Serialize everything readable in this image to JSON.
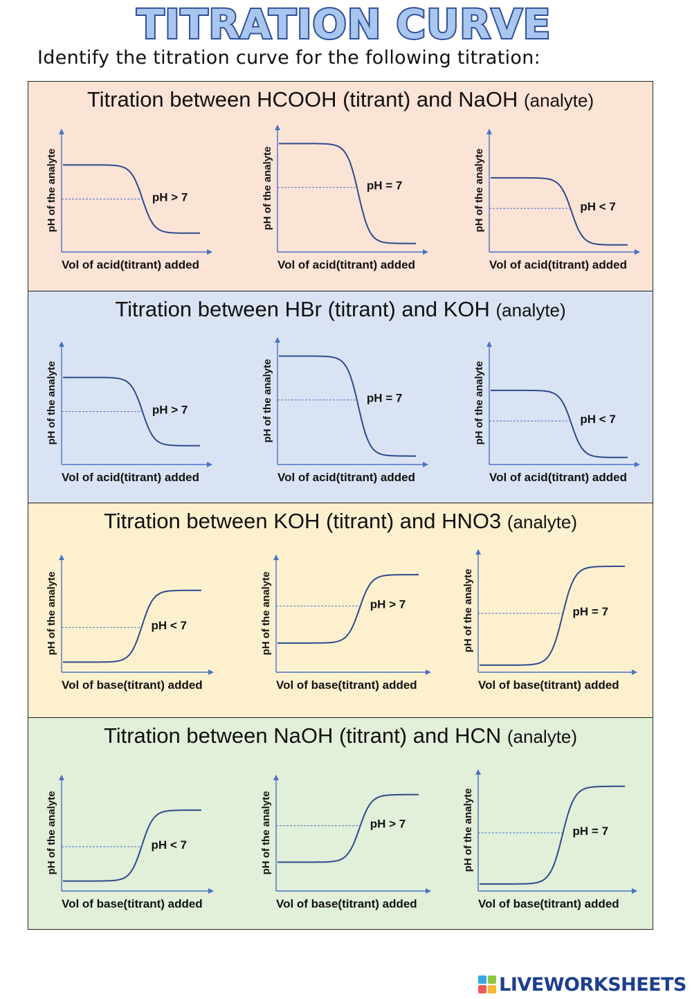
{
  "page": {
    "title": "TITRATION CURVE",
    "subtitle": "Identify the titration curve for the following titration:"
  },
  "colors": {
    "title_fill": "#a9c6ef",
    "title_stroke": "#2f4f9a",
    "curve": "#2c4a8c",
    "axis": "#4a72c4",
    "text": "#111111"
  },
  "sections": [
    {
      "heading_main": "Titration between HCOOH (titrant) and NaOH",
      "heading_tag": "(analyte)",
      "background": "#fbe3d6",
      "curve_direction": "descending",
      "x_label": "Vol of acid(titrant) added",
      "y_label": "pH of the analyte",
      "options": [
        {
          "annotation": "pH > 7",
          "ph_start": 0.74,
          "ph_end": 0.16,
          "equivalence_ph": 0.45,
          "equivalence_vol": 0.58
        },
        {
          "annotation": "pH = 7",
          "ph_start": 0.89,
          "ph_end": 0.07,
          "equivalence_ph": 0.53,
          "equivalence_vol": 0.58
        },
        {
          "annotation": "pH < 7",
          "ph_start": 0.63,
          "ph_end": 0.06,
          "equivalence_ph": 0.37,
          "equivalence_vol": 0.59
        }
      ]
    },
    {
      "heading_main": "Titration between HBr (titrant) and KOH",
      "heading_tag": "(analyte)",
      "background": "#dae3f3",
      "curve_direction": "descending",
      "x_label": "Vol of acid(titrant) added",
      "y_label": "pH of the analyte",
      "options": [
        {
          "annotation": "pH > 7",
          "ph_start": 0.74,
          "ph_end": 0.16,
          "equivalence_ph": 0.45,
          "equivalence_vol": 0.58
        },
        {
          "annotation": "pH = 7",
          "ph_start": 0.89,
          "ph_end": 0.07,
          "equivalence_ph": 0.53,
          "equivalence_vol": 0.58
        },
        {
          "annotation": "pH < 7",
          "ph_start": 0.63,
          "ph_end": 0.06,
          "equivalence_ph": 0.37,
          "equivalence_vol": 0.59
        }
      ]
    },
    {
      "heading_main": "Titration between KOH (titrant) and HNO3",
      "heading_tag": "(analyte)",
      "background": "#fdf0cf",
      "curve_direction": "ascending",
      "x_label": "Vol of base(titrant) added",
      "y_label": "pH of the analyte",
      "options": [
        {
          "annotation": "pH < 7",
          "ph_start": 0.09,
          "ph_end": 0.73,
          "equivalence_ph": 0.4,
          "equivalence_vol": 0.57
        },
        {
          "annotation": "pH > 7",
          "ph_start": 0.26,
          "ph_end": 0.87,
          "equivalence_ph": 0.59,
          "equivalence_vol": 0.58
        },
        {
          "annotation": "pH = 7",
          "ph_start": 0.06,
          "ph_end": 0.9,
          "equivalence_ph": 0.5,
          "equivalence_vol": 0.57
        }
      ]
    },
    {
      "heading_main": "Titration between NaOH (titrant) and HCN",
      "heading_tag": "(analyte)",
      "background": "#e2efd9",
      "curve_direction": "ascending",
      "x_label": "Vol of base(titrant) added",
      "y_label": "pH of the analyte",
      "options": [
        {
          "annotation": "pH < 7",
          "ph_start": 0.09,
          "ph_end": 0.73,
          "equivalence_ph": 0.4,
          "equivalence_vol": 0.57
        },
        {
          "annotation": "pH > 7",
          "ph_start": 0.26,
          "ph_end": 0.87,
          "equivalence_ph": 0.59,
          "equivalence_vol": 0.58
        },
        {
          "annotation": "pH = 7",
          "ph_start": 0.06,
          "ph_end": 0.9,
          "equivalence_ph": 0.5,
          "equivalence_vol": 0.57
        }
      ]
    }
  ],
  "footer": {
    "logo": "LIVEWORKSHEETS"
  }
}
